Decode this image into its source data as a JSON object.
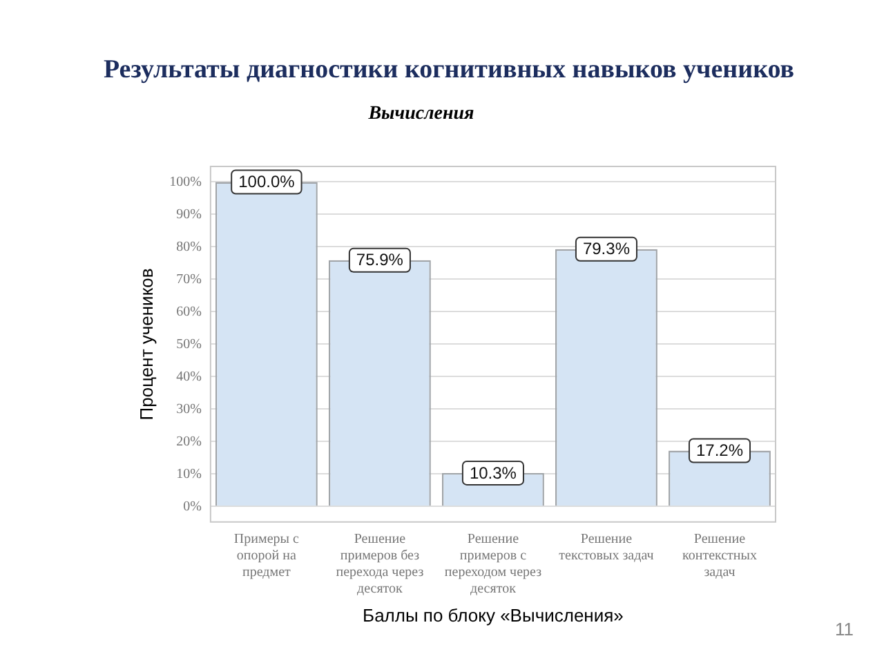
{
  "chart_data": {
    "type": "bar",
    "title": "Результаты диагностики когнитивных навыков учеников",
    "subtitle": "Вычисления",
    "xlabel": "Баллы по блоку «Вычисления»",
    "ylabel": "Процент учеников",
    "categories": [
      "Примеры с опорой на предмет",
      "Решение примеров без перехода через десяток",
      "Решение примеров с переходом через десяток",
      "Решение текстовых задач",
      "Решение контекстных задач"
    ],
    "values": [
      100,
      75.9,
      10.3,
      79.3,
      17.2
    ],
    "color": "#d5e4f4",
    "value_labels": [
      "100.0%",
      "75.9%",
      "10.3%",
      "79.3%",
      "17.2%"
    ],
    "ylim": [
      -5,
      105
    ],
    "yticks": [
      {
        "value": 0,
        "label": "0%"
      },
      {
        "value": 10,
        "label": "10%"
      },
      {
        "value": 20,
        "label": "20%"
      },
      {
        "value": 30,
        "label": "30%"
      },
      {
        "value": 40,
        "label": "40%"
      },
      {
        "value": 50,
        "label": "50%"
      },
      {
        "value": 60,
        "label": "60%"
      },
      {
        "value": 70,
        "label": "70%"
      },
      {
        "value": 80,
        "label": "80%"
      },
      {
        "value": 90,
        "label": "90%"
      },
      {
        "value": 100,
        "label": "100%"
      }
    ],
    "grid": "y",
    "annotations": [
      "11"
    ]
  }
}
